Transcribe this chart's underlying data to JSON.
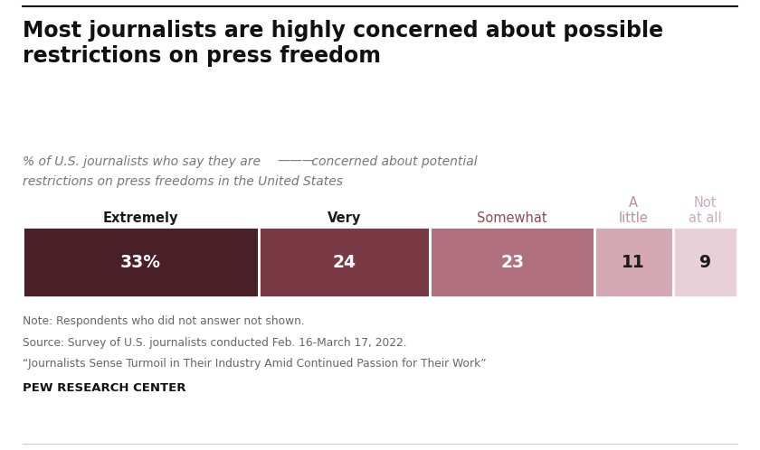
{
  "title": "Most journalists are highly concerned about possible\nrestrictions on press freedom",
  "categories": [
    "Extremely",
    "Very",
    "Somewhat",
    "A\nlittle",
    "Not\nat all"
  ],
  "values": [
    33,
    24,
    23,
    11,
    9
  ],
  "value_labels": [
    "33%",
    "24",
    "23",
    "11",
    "9"
  ],
  "bar_colors": [
    "#4a2028",
    "#7a3a45",
    "#b07080",
    "#d4a8b4",
    "#e8d0d8"
  ],
  "label_colors": [
    "#ffffff",
    "#ffffff",
    "#ffffff",
    "#1a1a1a",
    "#1a1a1a"
  ],
  "category_colors": [
    "#1a1a1a",
    "#1a1a1a",
    "#8b4a58",
    "#b890a0",
    "#ccaabb"
  ],
  "category_fontweights": [
    "bold",
    "bold",
    "normal",
    "normal",
    "normal"
  ],
  "note1": "Note: Respondents who did not answer not shown.",
  "note2": "Source: Survey of U.S. journalists conducted Feb. 16-March 17, 2022.",
  "note3": "“Journalists Sense Turmoil in Their Industry Amid Continued Passion for Their Work”",
  "source_label": "PEW RESEARCH CENTER",
  "background_color": "#ffffff"
}
